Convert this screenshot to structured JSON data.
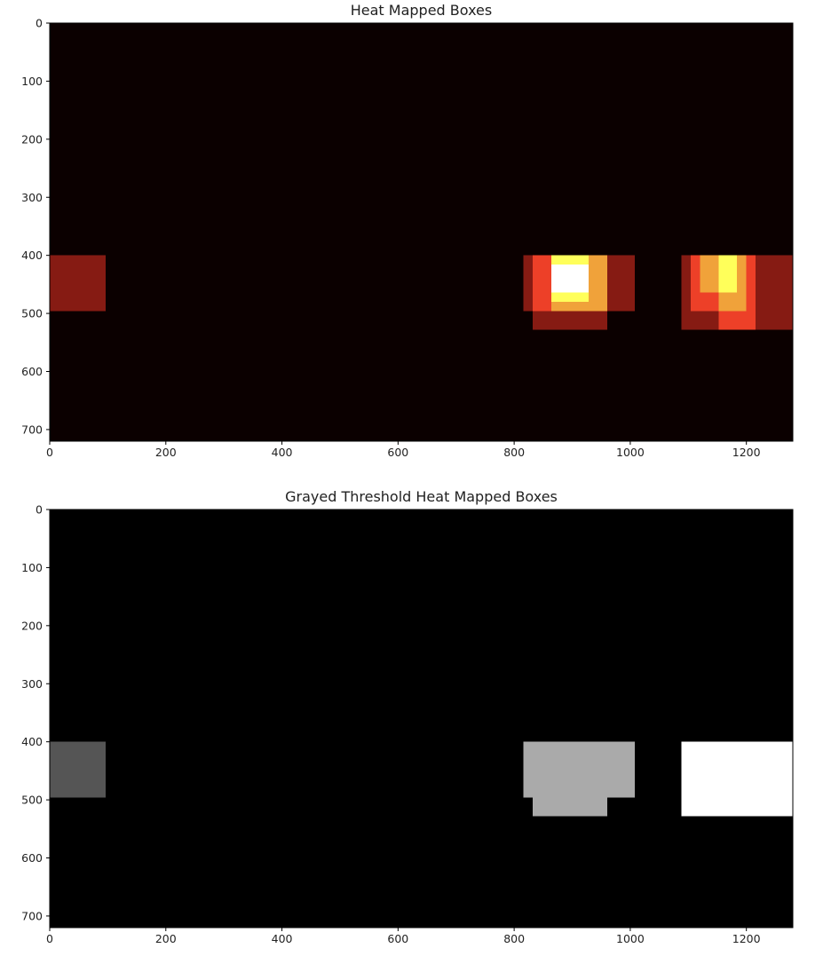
{
  "chart_data": [
    {
      "type": "heatmap",
      "title": "Heat Mapped Boxes",
      "colormap": "hot",
      "background_color": "#0b0000",
      "xlim": [
        0,
        1280
      ],
      "ylim": [
        720,
        0
      ],
      "x_ticks": [
        0,
        200,
        400,
        600,
        800,
        1000,
        1200
      ],
      "y_ticks": [
        0,
        100,
        200,
        300,
        400,
        500,
        600,
        700
      ],
      "cells": [
        {
          "x0": 0,
          "x1": 96,
          "y0": 400,
          "y1": 496,
          "color": "#861b13"
        },
        {
          "x0": 816,
          "x1": 1008,
          "y0": 400,
          "y1": 496,
          "color": "#861b13"
        },
        {
          "x0": 832,
          "x1": 960,
          "y0": 496,
          "y1": 528,
          "color": "#861b13"
        },
        {
          "x0": 832,
          "x1": 864,
          "y0": 400,
          "y1": 496,
          "color": "#ed4028"
        },
        {
          "x0": 864,
          "x1": 960,
          "y0": 400,
          "y1": 496,
          "color": "#f0a23a"
        },
        {
          "x0": 864,
          "x1": 928,
          "y0": 400,
          "y1": 480,
          "color": "#ffff5a"
        },
        {
          "x0": 864,
          "x1": 928,
          "y0": 416,
          "y1": 464,
          "color": "#ffffff"
        },
        {
          "x0": 1088,
          "x1": 1280,
          "y0": 400,
          "y1": 528,
          "color": "#861b13"
        },
        {
          "x0": 1104,
          "x1": 1216,
          "y0": 400,
          "y1": 496,
          "color": "#ed4028"
        },
        {
          "x0": 1152,
          "x1": 1216,
          "y0": 496,
          "y1": 528,
          "color": "#ed4028"
        },
        {
          "x0": 1120,
          "x1": 1200,
          "y0": 400,
          "y1": 464,
          "color": "#f0a23a"
        },
        {
          "x0": 1152,
          "x1": 1200,
          "y0": 464,
          "y1": 496,
          "color": "#f0a23a"
        },
        {
          "x0": 1152,
          "x1": 1184,
          "y0": 400,
          "y1": 464,
          "color": "#ffff5a"
        }
      ]
    },
    {
      "type": "heatmap",
      "title": "Grayed Threshold Heat Mapped Boxes",
      "colormap": "gray",
      "background_color": "#000000",
      "xlim": [
        0,
        1280
      ],
      "ylim": [
        720,
        0
      ],
      "x_ticks": [
        0,
        200,
        400,
        600,
        800,
        1000,
        1200
      ],
      "y_ticks": [
        0,
        100,
        200,
        300,
        400,
        500,
        600,
        700
      ],
      "cells": [
        {
          "x0": 0,
          "x1": 96,
          "y0": 400,
          "y1": 496,
          "color": "#555555"
        },
        {
          "x0": 816,
          "x1": 1008,
          "y0": 400,
          "y1": 496,
          "color": "#aaaaaa"
        },
        {
          "x0": 832,
          "x1": 960,
          "y0": 496,
          "y1": 528,
          "color": "#aaaaaa"
        },
        {
          "x0": 1088,
          "x1": 1280,
          "y0": 400,
          "y1": 528,
          "color": "#ffffff"
        }
      ]
    }
  ]
}
